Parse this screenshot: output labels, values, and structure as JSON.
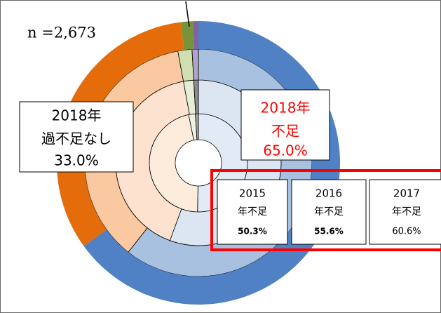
{
  "chart_data": {
    "type": "donut",
    "note": "n =2,673",
    "series": [
      {
        "name": "2015",
        "values": [
          50.3,
          46.5,
          2.2,
          1.0
        ],
        "colors": [
          "#e2eaf5",
          "#fdebdc",
          "#eef3e2",
          "#a6a6a6"
        ],
        "value_labels": [
          "50.3%",
          null,
          null,
          null
        ],
        "label_titles": [
          [
            "2015",
            "年不足"
          ],
          null,
          null,
          null
        ]
      },
      {
        "name": "2016",
        "values": [
          55.6,
          41.5,
          2.0,
          0.9
        ],
        "colors": [
          "#dce6f2",
          "#fde3cf",
          "#e6eed5",
          "#8c8c8c"
        ],
        "value_labels": [
          "55.6%",
          null,
          null,
          null
        ],
        "label_titles": [
          [
            "2016",
            "年不足"
          ],
          null,
          null,
          null
        ]
      },
      {
        "name": "2017",
        "values": [
          60.6,
          36.5,
          2.0,
          0.9
        ],
        "colors": [
          "#a9c1e0",
          "#fbc9a1",
          "#cfdfb0",
          "#b3a2c7"
        ],
        "value_labels": [
          "60.6%",
          null,
          null,
          null
        ],
        "label_titles": [
          [
            "2017",
            "年不足"
          ],
          null,
          null,
          null
        ]
      },
      {
        "name": "2018",
        "values": [
          65.0,
          33.0,
          1.4,
          0.6
        ],
        "colors": [
          "#4f81c4",
          "#e46c0a",
          "#77933c",
          "#8064a2"
        ],
        "value_labels": [
          "65.0%",
          "33.0%",
          null,
          null
        ],
        "label_titles": [
          [
            "2018年",
            "不足"
          ],
          [
            "2018年",
            "過不足なし"
          ],
          null,
          null
        ]
      }
    ]
  }
}
